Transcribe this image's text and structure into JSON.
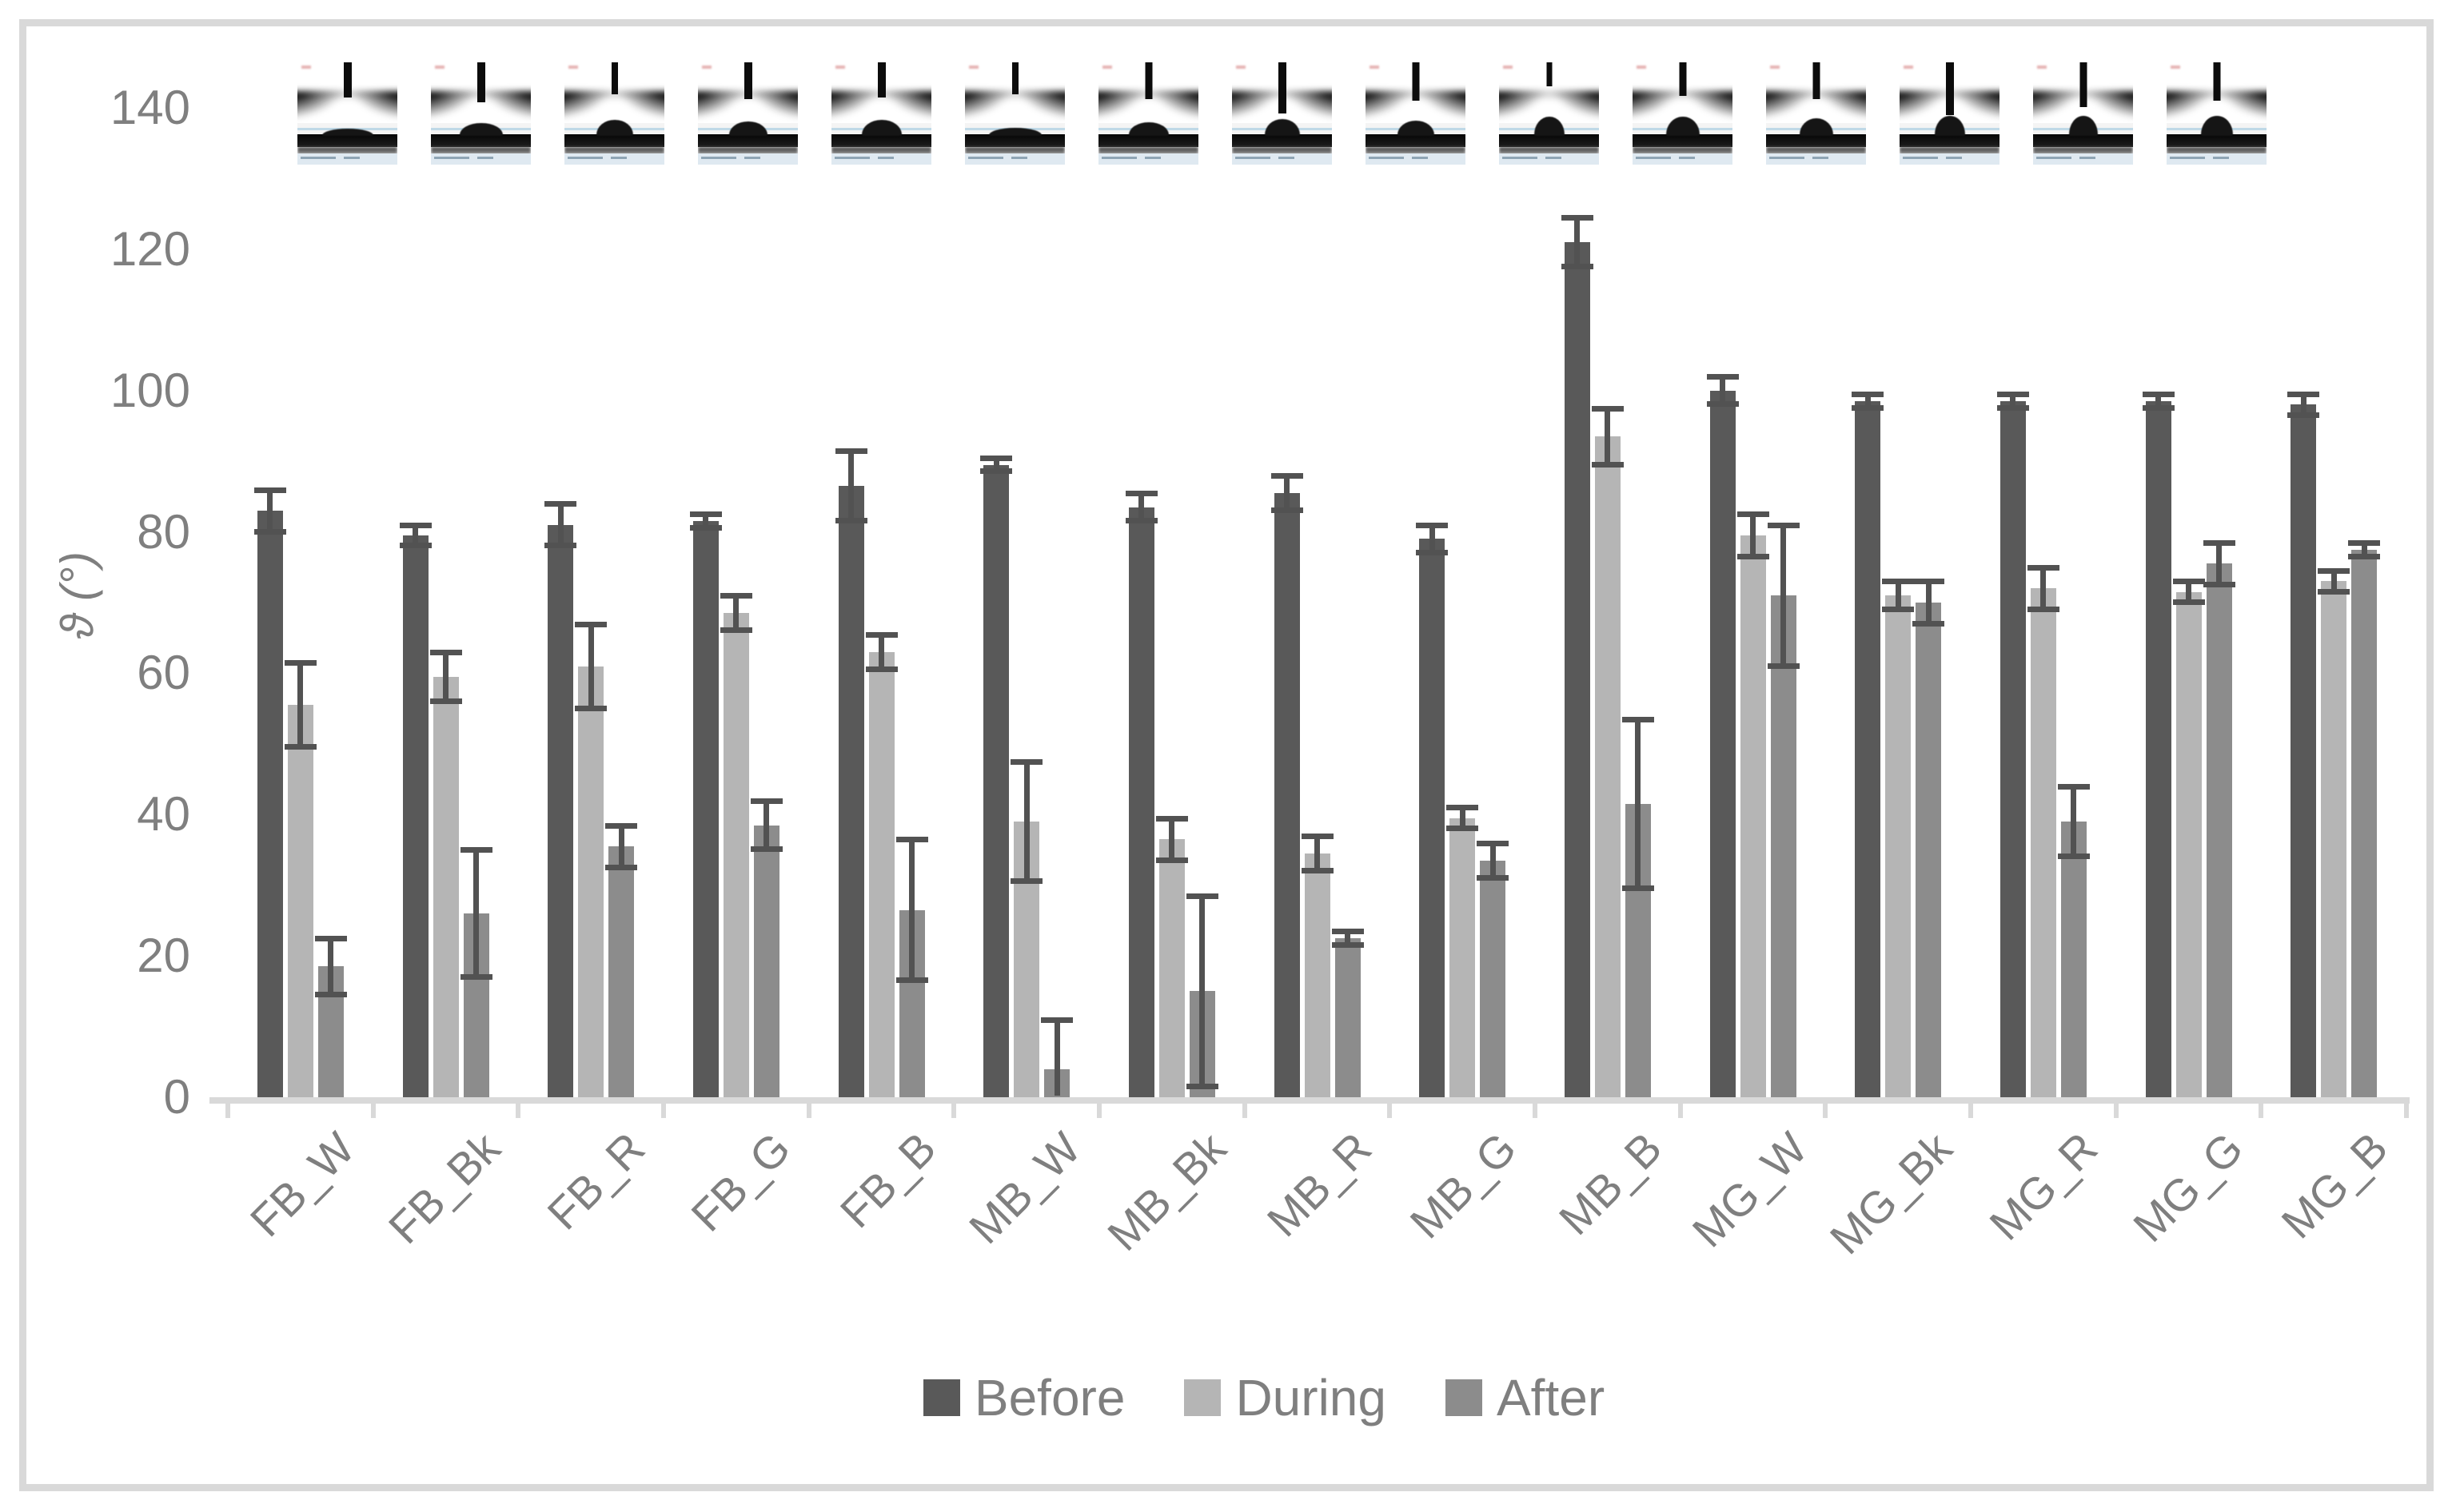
{
  "palette": {
    "before": "#595959",
    "during": "#b5b5b5",
    "after": "#8c8c8c",
    "error": "#525252",
    "axis": "#d9d9d9",
    "frame": "#d9d9d9",
    "label_gray": "#7f7f7f"
  },
  "chart_data": {
    "type": "bar",
    "title": "",
    "xlabel": "",
    "ylabel": "ϑ (°)",
    "ylim": [
      0,
      140
    ],
    "yticks": [
      0,
      20,
      40,
      60,
      80,
      100,
      120,
      140
    ],
    "grid": false,
    "legend_position": "bottom",
    "categories": [
      "FB_W",
      "FB_Bk",
      "FB_R",
      "FB_G",
      "FB_B",
      "MB_W",
      "MB_Bk",
      "MB_R",
      "MB_G",
      "MB_B",
      "MG_W",
      "MG_Bk",
      "MG_R",
      "MG_G",
      "MG_B"
    ],
    "series": [
      {
        "name": "Before",
        "color": "#595959",
        "values": [
          83,
          79.5,
          81,
          81.5,
          86.5,
          89.5,
          83.5,
          85.5,
          79,
          121,
          100,
          98.5,
          98.5,
          98.5,
          98
        ],
        "errors": [
          3,
          1.5,
          3,
          1,
          5,
          1,
          2,
          2.5,
          2,
          3.5,
          2,
          1,
          1,
          1,
          1.5
        ]
      },
      {
        "name": "During",
        "color": "#b5b5b5",
        "values": [
          55.5,
          59.5,
          61,
          68.5,
          63,
          39,
          36.5,
          34.5,
          39.5,
          93.5,
          79.5,
          71,
          72,
          71.5,
          73
        ],
        "errors": [
          6,
          3.5,
          6,
          2.5,
          2.5,
          8.5,
          3,
          2.5,
          1.5,
          4,
          3,
          2,
          3,
          1.5,
          1.5
        ]
      },
      {
        "name": "After",
        "color": "#8c8c8c",
        "values": [
          18.5,
          26,
          35.5,
          38.5,
          26.5,
          4,
          15,
          22.5,
          33.5,
          41.5,
          71,
          70,
          39,
          75.5,
          77.5
        ],
        "errors": [
          4,
          9,
          3,
          3.5,
          10,
          7,
          13.5,
          1,
          2.5,
          12,
          10,
          3,
          5,
          3,
          1
        ]
      }
    ]
  },
  "thumbnails": [
    {
      "category": "FB_W",
      "needle_len": 44,
      "needle_w": 10,
      "drop_w": 64,
      "drop_h": 9
    },
    {
      "category": "FB_Bk",
      "needle_len": 50,
      "needle_w": 10,
      "drop_w": 54,
      "drop_h": 16
    },
    {
      "category": "FB_R",
      "needle_len": 40,
      "needle_w": 8,
      "drop_w": 46,
      "drop_h": 20
    },
    {
      "category": "FB_G",
      "needle_len": 46,
      "needle_w": 10,
      "drop_w": 48,
      "drop_h": 18
    },
    {
      "category": "FB_B",
      "needle_len": 44,
      "needle_w": 10,
      "drop_w": 50,
      "drop_h": 20
    },
    {
      "category": "MB_W",
      "needle_len": 40,
      "needle_w": 8,
      "drop_w": 66,
      "drop_h": 10
    },
    {
      "category": "MB_Bk",
      "needle_len": 46,
      "needle_w": 9,
      "drop_w": 50,
      "drop_h": 17
    },
    {
      "category": "MB_R",
      "needle_len": 64,
      "needle_w": 10,
      "drop_w": 44,
      "drop_h": 21
    },
    {
      "category": "MB_G",
      "needle_len": 48,
      "needle_w": 9,
      "drop_w": 46,
      "drop_h": 19
    },
    {
      "category": "MB_B",
      "needle_len": 30,
      "needle_w": 7,
      "drop_w": 38,
      "drop_h": 24
    },
    {
      "category": "MG_W",
      "needle_len": 42,
      "needle_w": 9,
      "drop_w": 42,
      "drop_h": 24
    },
    {
      "category": "MG_Bk",
      "needle_len": 46,
      "needle_w": 9,
      "drop_w": 42,
      "drop_h": 22
    },
    {
      "category": "MG_R",
      "needle_len": 66,
      "needle_w": 10,
      "drop_w": 38,
      "drop_h": 25
    },
    {
      "category": "MG_G",
      "needle_len": 56,
      "needle_w": 9,
      "drop_w": 36,
      "drop_h": 25
    },
    {
      "category": "MG_B",
      "needle_len": 48,
      "needle_w": 9,
      "drop_w": 40,
      "drop_h": 25
    }
  ]
}
